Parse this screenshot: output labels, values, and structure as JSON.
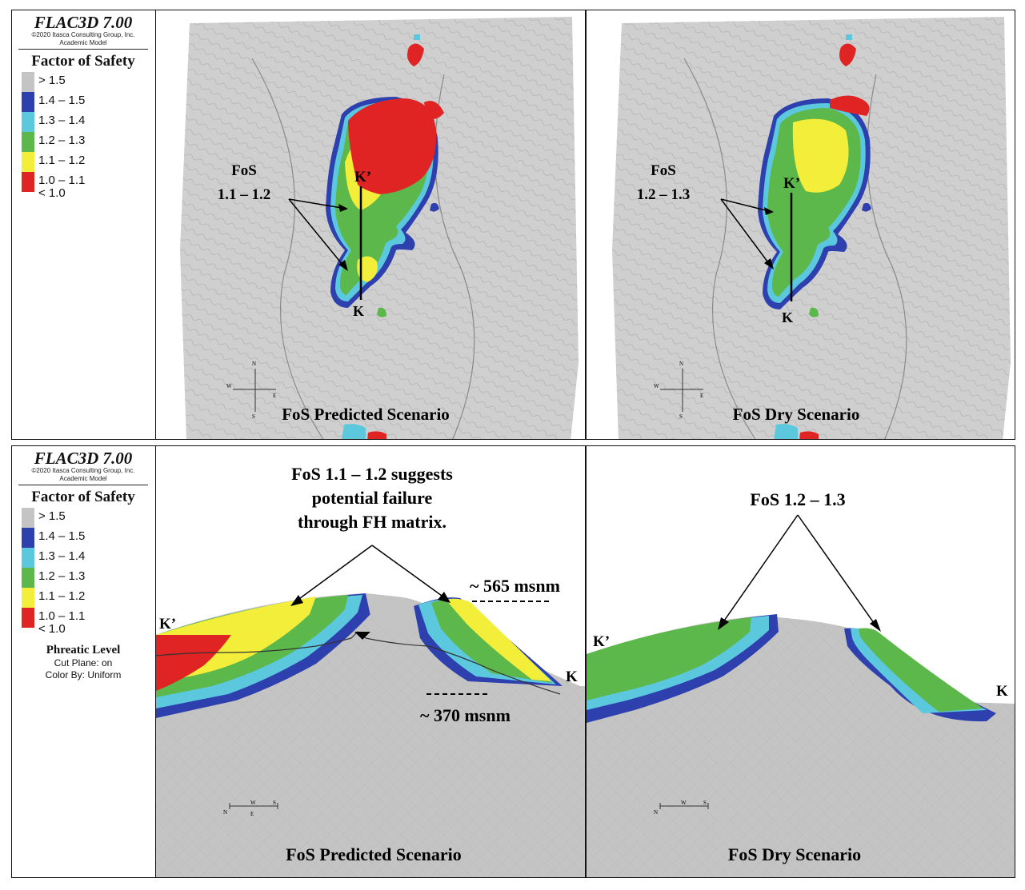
{
  "legend": {
    "title": "FLAC3D 7.00",
    "copyright": "©2020 Itasca Consulting Group, Inc.",
    "model": "Academic Model",
    "heading": "Factor of Safety",
    "items": [
      {
        "label": "> 1.5",
        "color": "#c4c4c4"
      },
      {
        "label": "1.4 – 1.5",
        "color": "#2e3fae"
      },
      {
        "label": "1.3 – 1.4",
        "color": "#5bc8de"
      },
      {
        "label": "1.2 – 1.3",
        "color": "#5cb84a"
      },
      {
        "label": "1.1 – 1.2",
        "color": "#f2ee3a"
      },
      {
        "label": "1.0 – 1.1",
        "color": "#e02424"
      }
    ],
    "last_label": "< 1.0",
    "phreatic": {
      "title": "Phreatic Level",
      "cut_plane": "Cut Plane: on",
      "color_by": "Color By: Uniform"
    }
  },
  "top_left": {
    "fos_label_1": "FoS",
    "fos_label_2": "1.1 – 1.2",
    "k_prime": "K’",
    "k": "K",
    "caption": "FoS Predicted Scenario"
  },
  "top_right": {
    "fos_label_1": "FoS",
    "fos_label_2": "1.2 – 1.3",
    "k_prime": "K’",
    "k": "K",
    "caption": "FoS Dry Scenario"
  },
  "bottom_left": {
    "annotation_1": "FoS 1.1 – 1.2 suggests",
    "annotation_2": "potential failure",
    "annotation_3": "through FH matrix.",
    "elev_top": "~ 565 msnm",
    "elev_bottom": "~ 370 msnm",
    "k_prime": "K’",
    "k": "K",
    "caption": "FoS Predicted Scenario"
  },
  "bottom_right": {
    "annotation": "FoS 1.2 – 1.3",
    "k_prime": "K’",
    "k": "K",
    "caption": "FoS Dry Scenario"
  },
  "compass": {
    "n": "N",
    "s": "S",
    "e": "E",
    "w": "W"
  },
  "colors": {
    "gray": "#c4c4c4",
    "blue": "#2e3fae",
    "cyan": "#5bc8de",
    "green": "#5cb84a",
    "yellow": "#f2ee3a",
    "red": "#e02424"
  }
}
